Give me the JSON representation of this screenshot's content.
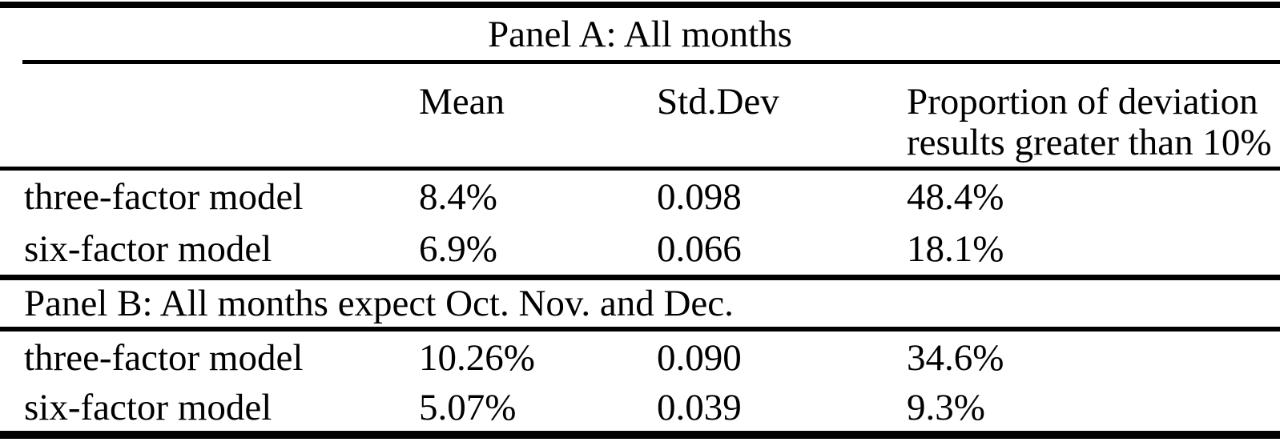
{
  "table": {
    "header": {
      "col_model": "",
      "col_mean": "Mean",
      "col_std_dev": "Std.Dev",
      "col_proportion": "Proportion of deviation results greater than 10%"
    },
    "panel_a": {
      "title": "Panel A: All months",
      "rows": [
        {
          "model": "three-factor model",
          "mean": "8.4%",
          "std_dev": "0.098",
          "proportion": "48.4%"
        },
        {
          "model": "six-factor model",
          "mean": "6.9%",
          "std_dev": "0.066",
          "proportion": "18.1%"
        }
      ]
    },
    "panel_b": {
      "title": "Panel B: All months expect Oct. Nov. and Dec.",
      "rows": [
        {
          "model": "three-factor model",
          "mean": "10.26%",
          "std_dev": "0.090",
          "proportion": "34.6%"
        },
        {
          "model": "six-factor model",
          "mean": "5.07%",
          "std_dev": "0.039",
          "proportion": "9.3%"
        }
      ]
    },
    "colors": {
      "rule": "#000000",
      "background": "#ffffff",
      "text": "#000000"
    }
  }
}
